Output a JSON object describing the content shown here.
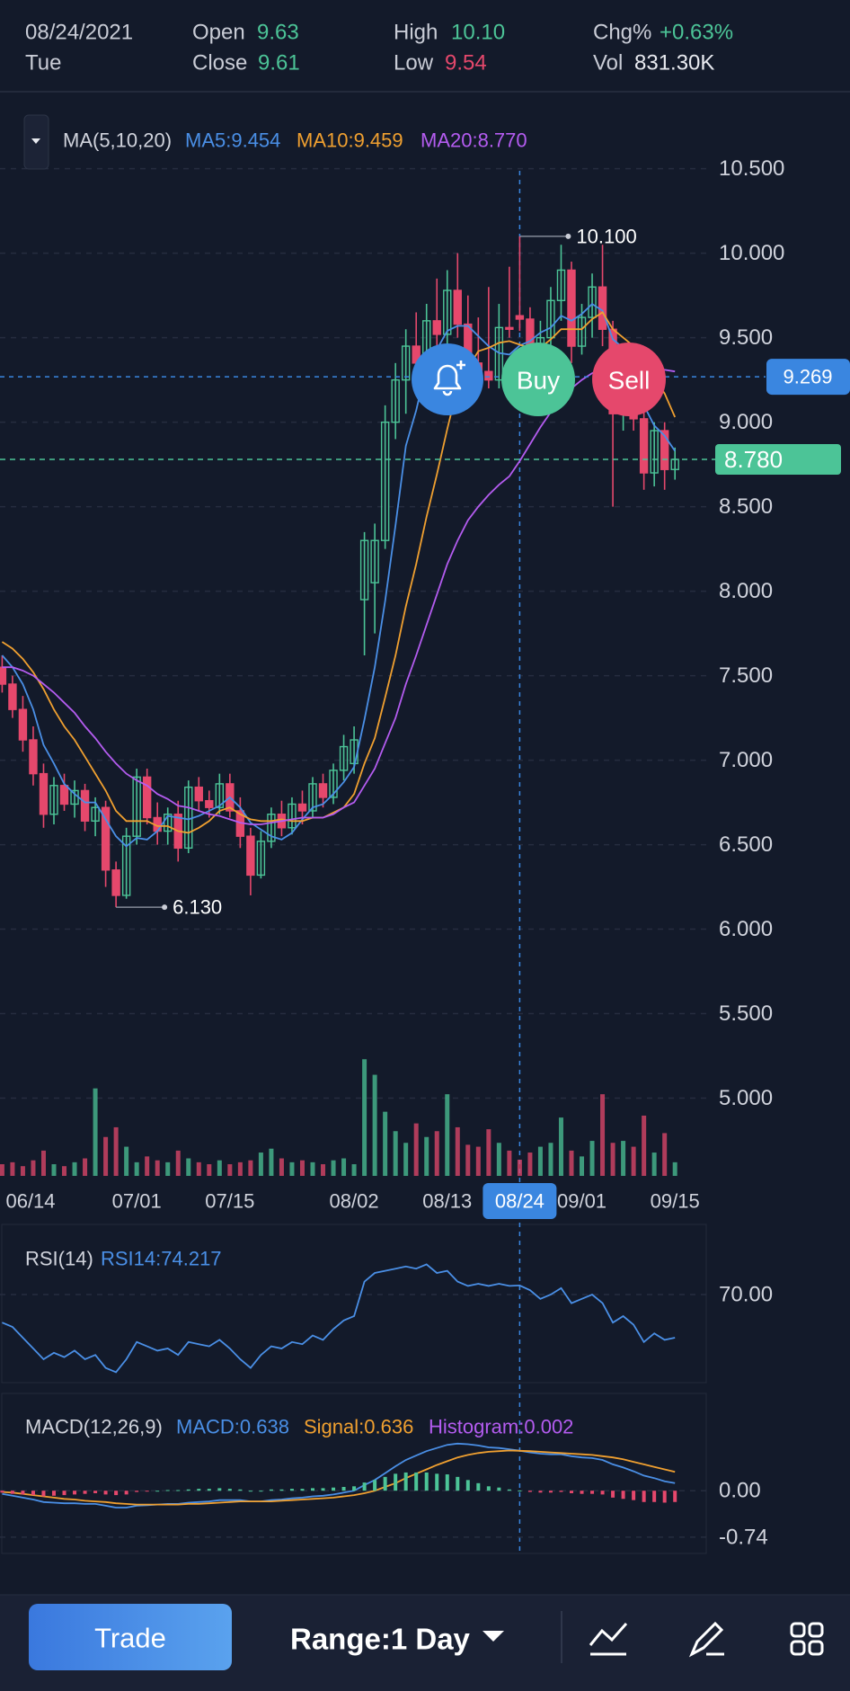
{
  "header": {
    "date": "08/24/2021",
    "weekday": "Tue",
    "open_label": "Open",
    "open": "9.63",
    "close_label": "Close",
    "close": "9.61",
    "high_label": "High",
    "high": "10.10",
    "low_label": "Low",
    "low": "9.54",
    "chg_label": "Chg%",
    "chg": "+0.63%",
    "vol_label": "Vol",
    "vol": "831.30K"
  },
  "chart_data": [
    {
      "type": "candlestick",
      "legend_title": "MA(5,10,20)",
      "categories": [
        "06/14",
        null,
        null,
        null,
        null,
        null,
        null,
        null,
        null,
        null,
        null,
        null,
        null,
        "07/01",
        null,
        null,
        null,
        null,
        null,
        null,
        null,
        null,
        "07/15",
        null,
        null,
        null,
        null,
        null,
        null,
        null,
        null,
        null,
        null,
        null,
        "08/02",
        null,
        null,
        null,
        null,
        null,
        null,
        null,
        null,
        "08/13",
        null,
        null,
        null,
        null,
        null,
        null,
        "08/24",
        null,
        null,
        null,
        null,
        null,
        "09/01",
        null,
        null,
        null,
        null,
        null,
        null,
        null,
        null,
        "09/15"
      ],
      "open": [
        7.55,
        7.45,
        7.3,
        7.12,
        6.92,
        6.68,
        6.85,
        6.74,
        6.82,
        6.64,
        6.72,
        6.35,
        6.2,
        6.55,
        6.9,
        6.66,
        6.58,
        6.68,
        6.48,
        6.84,
        6.76,
        6.72,
        6.86,
        6.7,
        6.55,
        6.32,
        6.52,
        6.68,
        6.6,
        6.74,
        6.7,
        6.86,
        6.78,
        6.94,
        6.98,
        7.95,
        8.05,
        8.3,
        9.0,
        9.25,
        9.45,
        9.35,
        9.6,
        9.52,
        9.78,
        9.58,
        9.35,
        9.3,
        9.25,
        9.56,
        9.63,
        9.61,
        9.42,
        9.5,
        9.72,
        9.9,
        9.45,
        9.62,
        9.8,
        9.55,
        9.05,
        9.2,
        9.02,
        8.7,
        8.95,
        8.72
      ],
      "high": [
        7.62,
        7.5,
        7.38,
        7.2,
        6.98,
        6.9,
        6.92,
        6.88,
        6.86,
        6.78,
        6.76,
        6.4,
        6.6,
        6.95,
        6.95,
        6.75,
        6.72,
        6.76,
        6.88,
        6.9,
        6.82,
        6.92,
        6.92,
        6.78,
        6.6,
        6.58,
        6.72,
        6.76,
        6.78,
        6.82,
        6.9,
        6.92,
        6.98,
        7.15,
        7.2,
        8.35,
        8.4,
        9.1,
        9.35,
        9.55,
        9.65,
        9.7,
        9.85,
        9.9,
        10.0,
        9.75,
        9.62,
        9.8,
        9.7,
        9.92,
        10.1,
        9.68,
        9.6,
        9.8,
        10.05,
        9.95,
        9.7,
        9.88,
        10.05,
        9.6,
        9.3,
        9.25,
        9.1,
        9.0,
        9.0,
        8.85
      ],
      "low": [
        7.4,
        7.25,
        7.05,
        6.85,
        6.6,
        6.62,
        6.7,
        6.66,
        6.58,
        6.55,
        6.25,
        6.13,
        6.18,
        6.5,
        6.62,
        6.5,
        6.5,
        6.4,
        6.45,
        6.7,
        6.66,
        6.68,
        6.66,
        6.48,
        6.2,
        6.3,
        6.48,
        6.55,
        6.56,
        6.62,
        6.66,
        6.72,
        6.74,
        6.88,
        6.92,
        7.62,
        7.75,
        8.25,
        8.9,
        9.05,
        9.2,
        9.3,
        9.45,
        9.4,
        9.5,
        9.25,
        9.2,
        9.2,
        9.2,
        9.5,
        9.54,
        9.35,
        9.3,
        9.4,
        9.6,
        9.35,
        9.4,
        9.5,
        9.45,
        8.5,
        8.95,
        8.95,
        8.6,
        8.62,
        8.6,
        8.66
      ],
      "close": [
        7.45,
        7.3,
        7.12,
        6.92,
        6.68,
        6.85,
        6.74,
        6.82,
        6.64,
        6.72,
        6.35,
        6.2,
        6.55,
        6.9,
        6.66,
        6.58,
        6.68,
        6.48,
        6.84,
        6.76,
        6.72,
        6.86,
        6.7,
        6.55,
        6.32,
        6.52,
        6.68,
        6.6,
        6.74,
        6.7,
        6.86,
        6.78,
        6.94,
        7.08,
        7.12,
        8.3,
        8.3,
        9.0,
        9.25,
        9.45,
        9.35,
        9.6,
        9.52,
        9.78,
        9.58,
        9.35,
        9.3,
        9.25,
        9.56,
        9.55,
        9.61,
        9.42,
        9.5,
        9.72,
        9.9,
        9.45,
        9.62,
        9.8,
        9.55,
        9.05,
        9.2,
        9.02,
        8.7,
        8.95,
        8.72,
        8.78
      ],
      "up_color": "#4cc497",
      "down_color": "#e5486c",
      "series": [
        {
          "name": "MA5:9.454",
          "color": "#4a8fe6",
          "values": [
            7.62,
            7.55,
            7.45,
            7.3,
            7.09,
            6.98,
            6.86,
            6.8,
            6.75,
            6.75,
            6.65,
            6.55,
            6.49,
            6.54,
            6.53,
            6.58,
            6.67,
            6.66,
            6.65,
            6.67,
            6.7,
            6.73,
            6.78,
            6.72,
            6.63,
            6.59,
            6.55,
            6.53,
            6.57,
            6.65,
            6.72,
            6.74,
            6.8,
            6.87,
            6.96,
            7.24,
            7.55,
            7.94,
            8.39,
            8.86,
            9.07,
            9.33,
            9.43,
            9.54,
            9.57,
            9.57,
            9.51,
            9.45,
            9.41,
            9.4,
            9.454,
            9.48,
            9.53,
            9.56,
            9.63,
            9.6,
            9.64,
            9.7,
            9.66,
            9.49,
            9.44,
            9.32,
            9.1,
            8.98,
            8.92,
            8.83
          ]
        },
        {
          "name": "MA10:9.459",
          "color": "#f0a030",
          "values": [
            7.7,
            7.66,
            7.6,
            7.52,
            7.42,
            7.3,
            7.2,
            7.12,
            7.02,
            6.92,
            6.82,
            6.7,
            6.64,
            6.64,
            6.64,
            6.61,
            6.61,
            6.58,
            6.57,
            6.6,
            6.64,
            6.7,
            6.72,
            6.68,
            6.65,
            6.64,
            6.64,
            6.65,
            6.64,
            6.64,
            6.66,
            6.66,
            6.69,
            6.72,
            6.8,
            6.98,
            7.13,
            7.37,
            7.62,
            7.91,
            8.16,
            8.44,
            8.69,
            8.96,
            9.21,
            9.32,
            9.42,
            9.44,
            9.47,
            9.48,
            9.459,
            9.44,
            9.44,
            9.49,
            9.55,
            9.55,
            9.55,
            9.61,
            9.65,
            9.55,
            9.5,
            9.45,
            9.37,
            9.26,
            9.17,
            9.03
          ]
        },
        {
          "name": "MA20:8.770",
          "color": "#b45cf0",
          "values": [
            7.55,
            7.55,
            7.53,
            7.5,
            7.45,
            7.4,
            7.34,
            7.28,
            7.2,
            7.13,
            7.05,
            6.98,
            6.92,
            6.88,
            6.85,
            6.8,
            6.77,
            6.73,
            6.72,
            6.7,
            6.68,
            6.67,
            6.65,
            6.63,
            6.62,
            6.62,
            6.63,
            6.64,
            6.65,
            6.66,
            6.66,
            6.66,
            6.68,
            6.72,
            6.75,
            6.85,
            6.95,
            7.1,
            7.25,
            7.45,
            7.62,
            7.8,
            7.98,
            8.16,
            8.3,
            8.42,
            8.5,
            8.57,
            8.63,
            8.68,
            8.77,
            8.87,
            8.97,
            9.06,
            9.14,
            9.2,
            9.25,
            9.29,
            9.32,
            9.33,
            9.34,
            9.34,
            9.33,
            9.32,
            9.31,
            9.3
          ]
        }
      ],
      "ylim": [
        4.54,
        10.86
      ],
      "yticks": [
        {
          "value": 10.5,
          "label": "10.500"
        },
        {
          "value": 10,
          "label": "10.000"
        },
        {
          "value": 9.5,
          "label": "9.500"
        },
        {
          "value": 9,
          "label": "9.000"
        },
        {
          "value": 8.5,
          "label": "8.500"
        },
        {
          "value": 8,
          "label": "8.000"
        },
        {
          "value": 7.5,
          "label": "7.500"
        },
        {
          "value": 7,
          "label": "7.000"
        },
        {
          "value": 6.5,
          "label": "6.500"
        },
        {
          "value": 6,
          "label": "6.000"
        },
        {
          "value": 5.5,
          "label": "5.500"
        },
        {
          "value": 5,
          "label": "5.000"
        }
      ],
      "grid": true,
      "annotations": [
        {
          "value": 10.1,
          "label": "10.100"
        },
        {
          "value": 6.13,
          "label": "6.130"
        }
      ],
      "crosshair": {
        "x": "08/24",
        "y": {
          "value": 9.269,
          "label": "9.269"
        }
      },
      "last_price": {
        "value": 8.78,
        "label": "8.780"
      },
      "actions": [
        "Buy",
        "Sell"
      ]
    },
    {
      "type": "bar",
      "values": [
        600000,
        700000,
        500000,
        800000,
        1300000,
        600000,
        500000,
        700000,
        900000,
        4500000,
        2000000,
        2500000,
        1500000,
        700000,
        1000000,
        800000,
        700000,
        1300000,
        900000,
        700000,
        600000,
        800000,
        600000,
        700000,
        800000,
        1200000,
        1400000,
        900000,
        700000,
        800000,
        700000,
        600000,
        800000,
        900000,
        600000,
        6000000,
        5200000,
        3300000,
        2300000,
        1700000,
        2700000,
        2000000,
        2300000,
        4200000,
        2500000,
        1600000,
        1500000,
        2400000,
        1700000,
        1300000,
        831300,
        1200000,
        1500000,
        1700000,
        3000000,
        1300000,
        1000000,
        1800000,
        4200000,
        1700000,
        1800000,
        1500000,
        3100000,
        1200000,
        2200000,
        700000
      ],
      "ylim": [
        0,
        8000000
      ]
    },
    {
      "type": "line",
      "title": "RSI(14)",
      "series": [
        {
          "name": "RSI14:74.217",
          "color": "#4a8fe6",
          "values": [
            57,
            55,
            50,
            45,
            40,
            43,
            41,
            44,
            40,
            42,
            36,
            34,
            40,
            48,
            46,
            44,
            45,
            42,
            48,
            47,
            46,
            49,
            45,
            40,
            36,
            42,
            46,
            45,
            48,
            47,
            51,
            49,
            54,
            58,
            60,
            76,
            80,
            81,
            82,
            83,
            82,
            84,
            80,
            81,
            76,
            74,
            75,
            74,
            75,
            74,
            74.217,
            72,
            68,
            70,
            73,
            66,
            68,
            70,
            66,
            57,
            60,
            56,
            48,
            52,
            49,
            50
          ]
        }
      ],
      "ylim": [
        30,
        100
      ],
      "yticks": [
        {
          "value": 70,
          "label": "70.00"
        }
      ],
      "grid": true
    },
    {
      "type": "macd",
      "title": "MACD(12,26,9)",
      "series": [
        {
          "name": "MACD:0.638",
          "color": "#4a8fe6",
          "values": [
            -0.05,
            -0.08,
            -0.11,
            -0.14,
            -0.18,
            -0.19,
            -0.2,
            -0.2,
            -0.21,
            -0.21,
            -0.24,
            -0.27,
            -0.27,
            -0.24,
            -0.23,
            -0.22,
            -0.21,
            -0.21,
            -0.19,
            -0.18,
            -0.17,
            -0.15,
            -0.15,
            -0.15,
            -0.17,
            -0.17,
            -0.15,
            -0.14,
            -0.12,
            -0.11,
            -0.09,
            -0.08,
            -0.06,
            -0.03,
            0.0,
            0.09,
            0.17,
            0.28,
            0.39,
            0.49,
            0.56,
            0.63,
            0.68,
            0.73,
            0.75,
            0.74,
            0.72,
            0.69,
            0.68,
            0.66,
            0.638,
            0.61,
            0.59,
            0.58,
            0.58,
            0.55,
            0.53,
            0.52,
            0.49,
            0.42,
            0.37,
            0.31,
            0.24,
            0.2,
            0.15,
            0.12
          ]
        },
        {
          "name": "Signal:0.636",
          "color": "#f0a030",
          "values": [
            -0.02,
            -0.03,
            -0.05,
            -0.07,
            -0.09,
            -0.11,
            -0.13,
            -0.14,
            -0.16,
            -0.17,
            -0.18,
            -0.2,
            -0.21,
            -0.22,
            -0.22,
            -0.22,
            -0.22,
            -0.22,
            -0.21,
            -0.21,
            -0.2,
            -0.19,
            -0.18,
            -0.17,
            -0.17,
            -0.17,
            -0.17,
            -0.16,
            -0.15,
            -0.14,
            -0.13,
            -0.12,
            -0.11,
            -0.09,
            -0.07,
            -0.04,
            0.0,
            0.06,
            0.12,
            0.2,
            0.27,
            0.34,
            0.41,
            0.47,
            0.53,
            0.57,
            0.6,
            0.62,
            0.63,
            0.64,
            0.636,
            0.63,
            0.62,
            0.61,
            0.6,
            0.59,
            0.58,
            0.57,
            0.55,
            0.53,
            0.5,
            0.46,
            0.42,
            0.38,
            0.34,
            0.3
          ]
        },
        {
          "name": "Histogram:0.002",
          "color": "#b45cf0",
          "up_color": "#4cc497",
          "down_color": "#e5486c",
          "values": [
            -0.03,
            -0.05,
            -0.06,
            -0.07,
            -0.09,
            -0.08,
            -0.07,
            -0.06,
            -0.05,
            -0.04,
            -0.06,
            -0.07,
            -0.06,
            -0.02,
            -0.01,
            0.0,
            0.01,
            0.01,
            0.02,
            0.03,
            0.03,
            0.04,
            0.03,
            0.02,
            0.0,
            0.0,
            0.02,
            0.02,
            0.03,
            0.03,
            0.04,
            0.04,
            0.05,
            0.06,
            0.07,
            0.13,
            0.17,
            0.22,
            0.27,
            0.29,
            0.29,
            0.29,
            0.27,
            0.26,
            0.22,
            0.17,
            0.12,
            0.07,
            0.05,
            0.02,
            0.002,
            -0.02,
            -0.03,
            -0.03,
            -0.02,
            -0.04,
            -0.05,
            -0.05,
            -0.06,
            -0.11,
            -0.13,
            -0.15,
            -0.18,
            -0.18,
            -0.19,
            -0.18
          ]
        }
      ],
      "ylim": [
        -1.0,
        1.55
      ],
      "yticks": [
        {
          "value": 0,
          "label": "0.00"
        },
        {
          "value": -0.74,
          "label": "-0.74"
        }
      ],
      "grid": true
    }
  ],
  "toolbar": {
    "trade": "Trade",
    "range": "Range:1 Day"
  }
}
